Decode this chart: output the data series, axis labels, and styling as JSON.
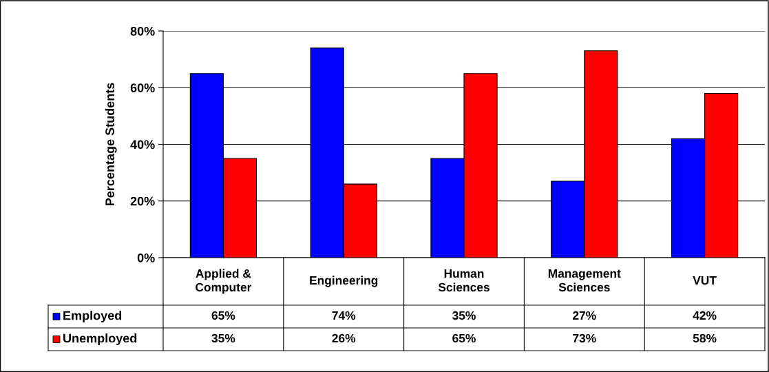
{
  "chart_data": {
    "type": "bar",
    "ylabel": "Percentage Students",
    "categories": [
      "Applied &\nComputer",
      "Engineering",
      "Human\nSciences",
      "Management\nSciences",
      "VUT"
    ],
    "series": [
      {
        "name": "Employed",
        "color": "#0000ff",
        "values": [
          65,
          74,
          35,
          27,
          42
        ],
        "value_labels": [
          "65%",
          "74%",
          "35%",
          "27%",
          "42%"
        ]
      },
      {
        "name": "Unemployed",
        "color": "#ff0000",
        "values": [
          35,
          26,
          65,
          73,
          58
        ],
        "value_labels": [
          "35%",
          "26%",
          "65%",
          "73%",
          "58%"
        ]
      }
    ],
    "ylim": [
      0,
      80
    ],
    "yticks": [
      {
        "value": 0,
        "label": "0%"
      },
      {
        "value": 20,
        "label": "20%"
      },
      {
        "value": 40,
        "label": "40%"
      },
      {
        "value": 60,
        "label": "60%"
      },
      {
        "value": 80,
        "label": "80%"
      }
    ],
    "grid": "y",
    "legend": "bottom"
  }
}
